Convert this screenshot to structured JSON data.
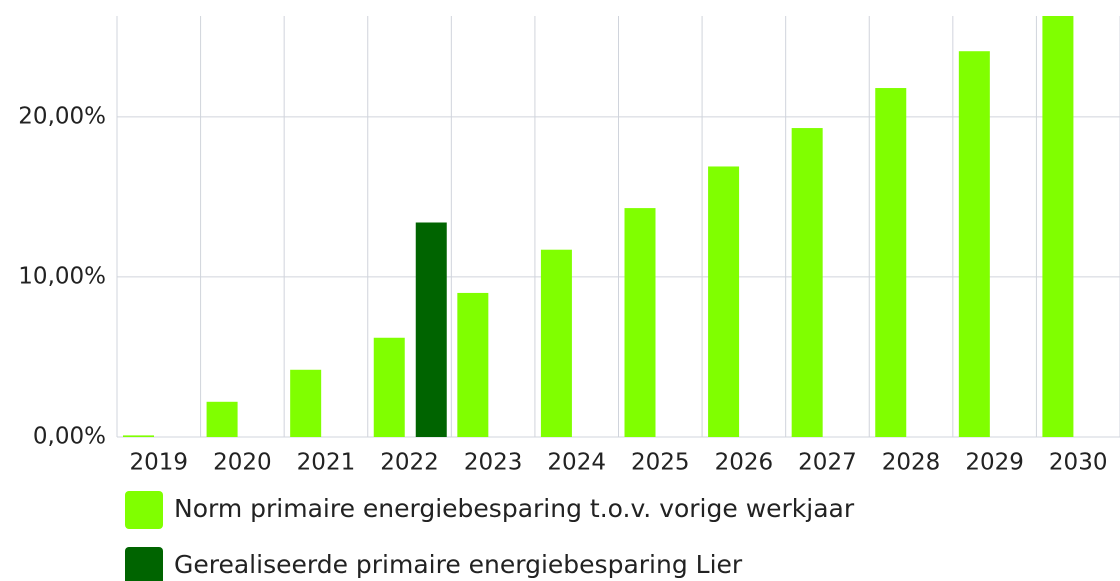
{
  "chart_data": {
    "type": "bar",
    "categories": [
      "2019",
      "2020",
      "2021",
      "2022",
      "2023",
      "2024",
      "2025",
      "2026",
      "2027",
      "2028",
      "2029",
      "2030"
    ],
    "series": [
      {
        "name": "Norm primaire energiebesparing t.o.v. vorige werkjaar",
        "color": "#80ff00",
        "values": [
          0.1,
          2.2,
          4.2,
          6.2,
          9.0,
          11.7,
          14.3,
          16.9,
          19.3,
          21.8,
          24.1,
          26.3
        ]
      },
      {
        "name": "Gerealiseerde primaire energiebesparing Lier",
        "color": "#006400",
        "values": [
          null,
          null,
          null,
          13.4,
          null,
          null,
          null,
          null,
          null,
          null,
          null,
          null
        ]
      }
    ],
    "ylim": [
      0,
      26.3
    ],
    "yticks": [
      {
        "value": 0,
        "label": "0,00%"
      },
      {
        "value": 10,
        "label": "10,00%"
      },
      {
        "value": 20,
        "label": "20,00%"
      }
    ],
    "grid": true
  }
}
